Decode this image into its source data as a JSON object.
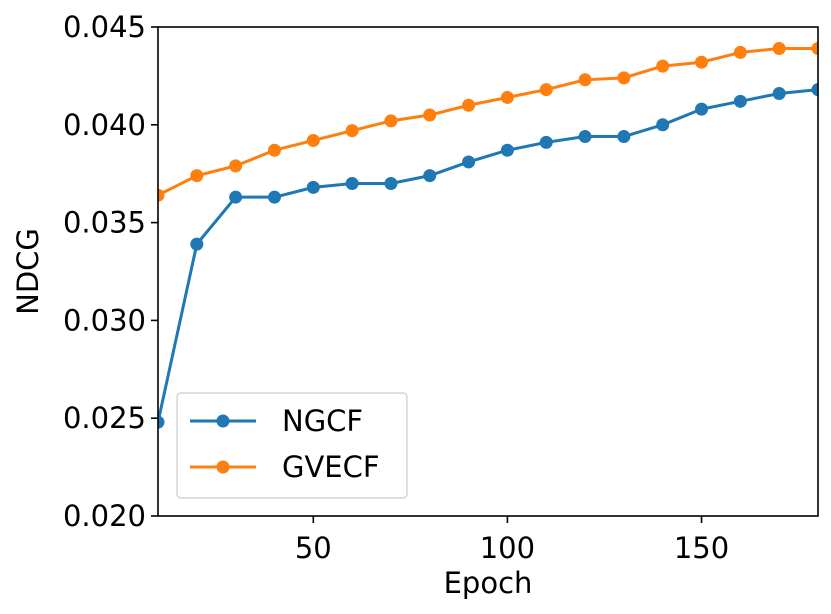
{
  "chart_data": {
    "type": "line",
    "title": "",
    "xlabel": "Epoch",
    "ylabel": "NDCG",
    "xlim": [
      10,
      180
    ],
    "ylim": [
      0.02,
      0.045
    ],
    "xticks": [
      50,
      100,
      150
    ],
    "xtick_labels": [
      "50",
      "100",
      "150"
    ],
    "yticks": [
      0.02,
      0.025,
      0.03,
      0.035,
      0.04,
      0.045
    ],
    "ytick_labels": [
      "0.020",
      "0.025",
      "0.030",
      "0.035",
      "0.040",
      "0.045"
    ],
    "legend_position": "lower-left",
    "grid": false,
    "x": [
      10,
      20,
      30,
      40,
      50,
      60,
      70,
      80,
      90,
      100,
      110,
      120,
      130,
      140,
      150,
      160,
      170,
      180
    ],
    "series": [
      {
        "name": "NGCF",
        "color": "#1f77b4",
        "values": [
          0.0248,
          0.0339,
          0.0363,
          0.0363,
          0.0368,
          0.037,
          0.037,
          0.0374,
          0.0381,
          0.0387,
          0.0391,
          0.0394,
          0.0394,
          0.04,
          0.0408,
          0.0412,
          0.0416,
          0.0418
        ]
      },
      {
        "name": "GVECF",
        "color": "#ff7f0e",
        "values": [
          0.0364,
          0.0374,
          0.0379,
          0.0387,
          0.0392,
          0.0397,
          0.0402,
          0.0405,
          0.041,
          0.0414,
          0.0418,
          0.0423,
          0.0424,
          0.043,
          0.0432,
          0.0437,
          0.0439,
          0.0439
        ]
      }
    ]
  }
}
